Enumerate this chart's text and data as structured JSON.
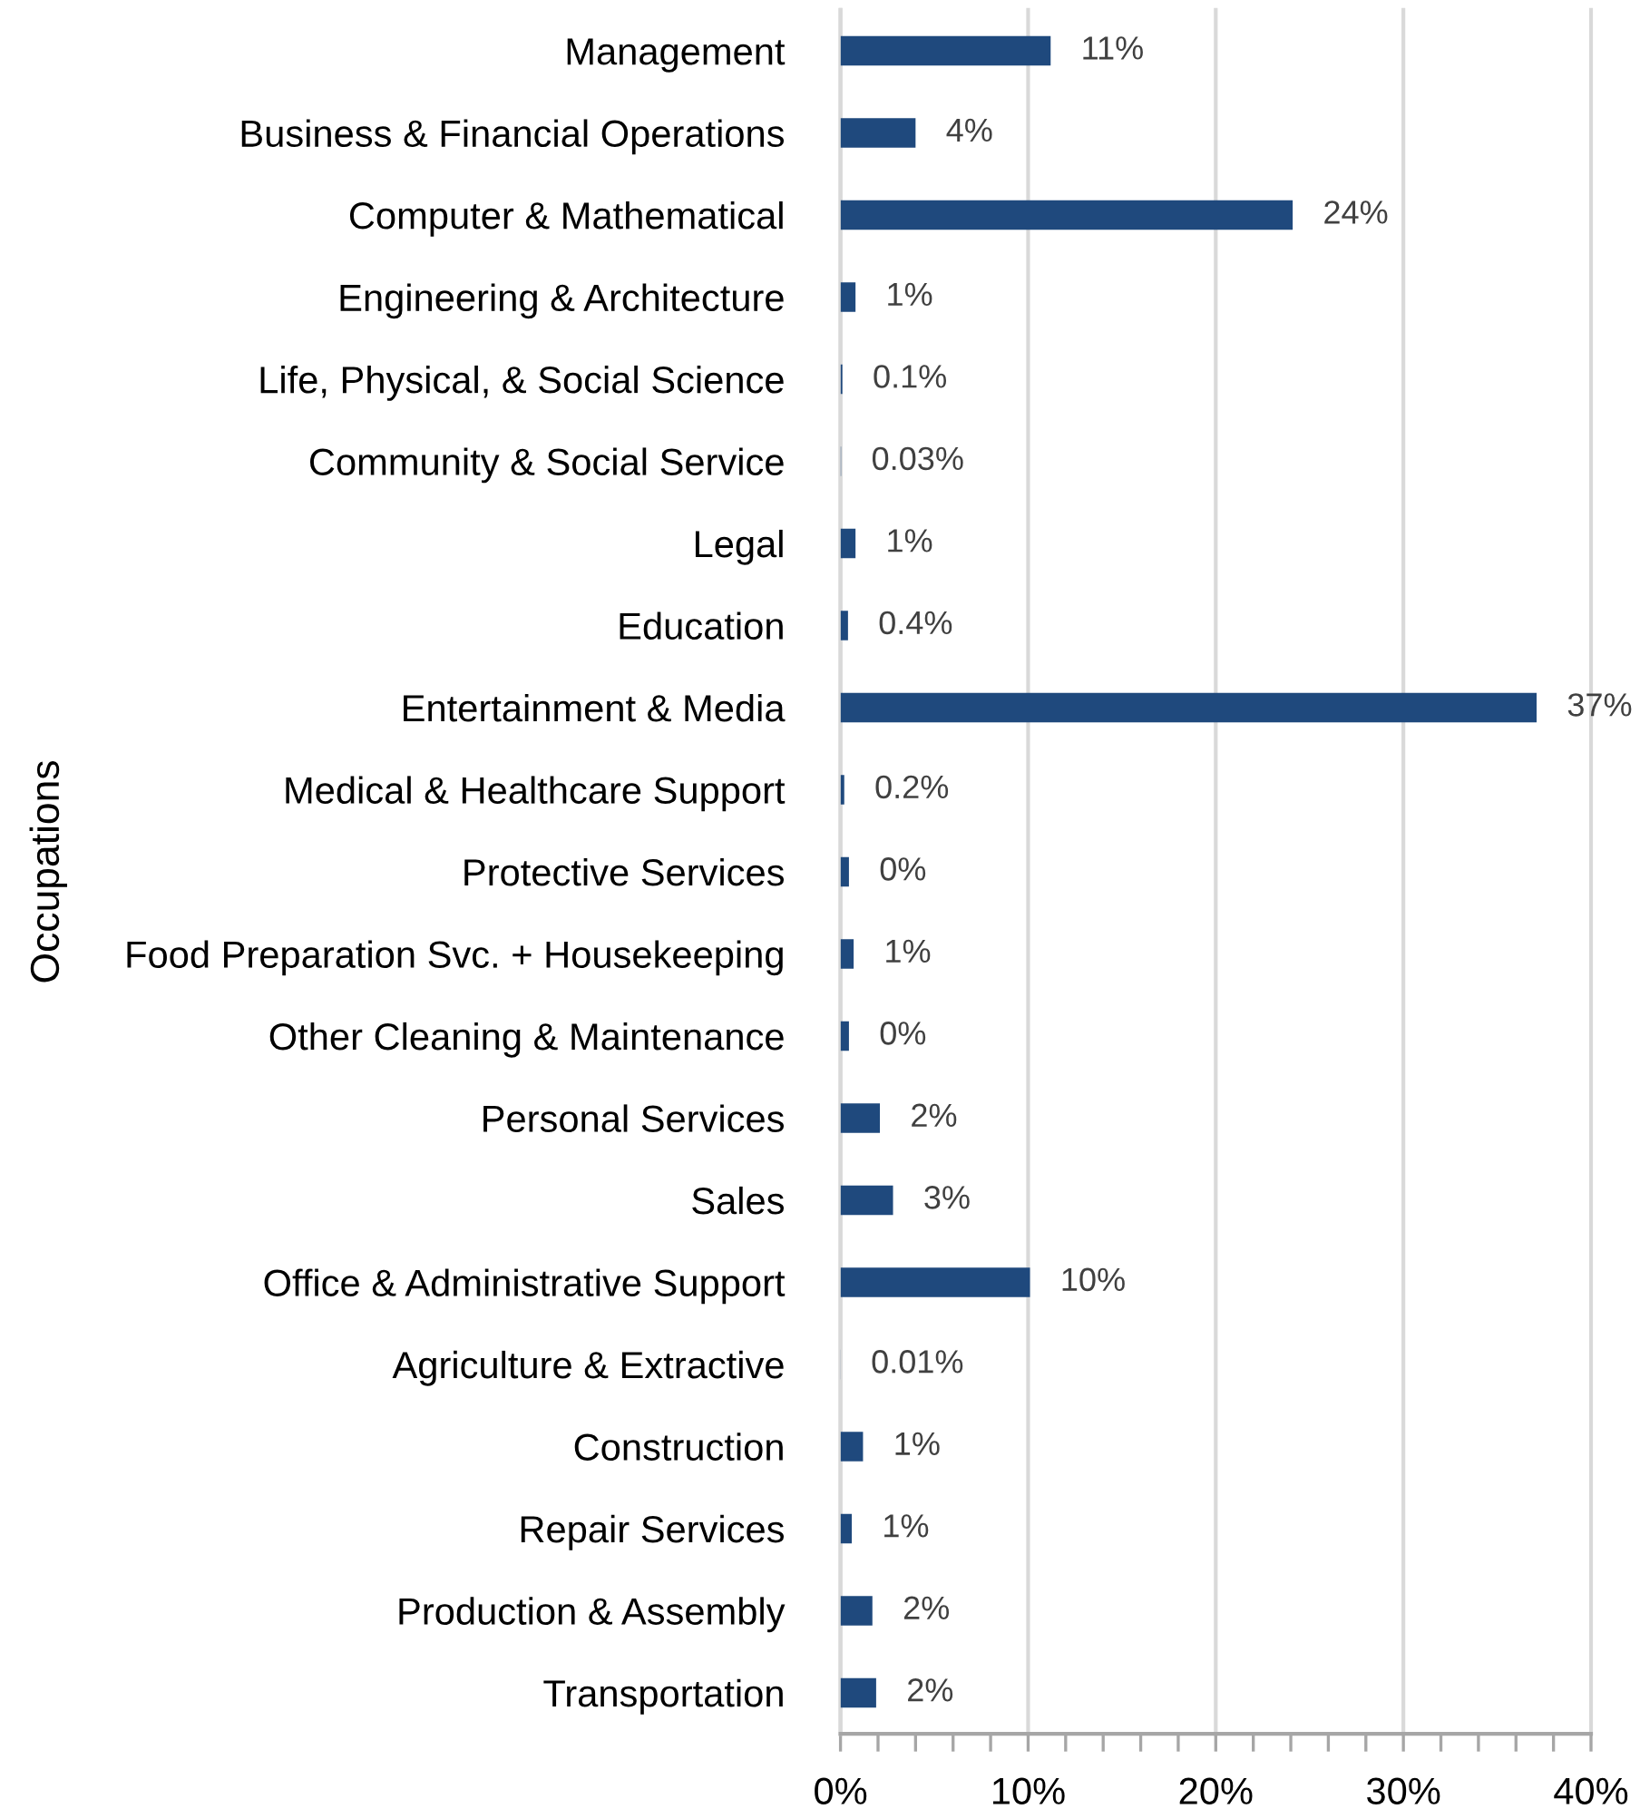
{
  "chart_data": {
    "type": "bar",
    "orientation": "horizontal",
    "ylabel": "Occupations",
    "categories": [
      "Management",
      "Business & Financial Operations",
      "Computer & Mathematical",
      "Engineering & Architecture",
      "Life, Physical, & Social Science",
      "Community & Social Service",
      "Legal",
      "Education",
      "Entertainment & Media",
      "Medical & Healthcare Support",
      "Protective Services",
      "Food Preparation Svc. + Housekeeping",
      "Other Cleaning & Maintenance",
      "Personal Services",
      "Sales",
      "Office & Administrative Support",
      "Agriculture & Extractive",
      "Construction",
      "Repair Services",
      "Production & Assembly",
      "Transportation"
    ],
    "values": [
      11.2,
      4.0,
      24.1,
      0.8,
      0.1,
      0.03,
      0.8,
      0.4,
      37.1,
      0.2,
      0.45,
      0.7,
      0.45,
      2.1,
      2.8,
      10.1,
      0.01,
      1.2,
      0.6,
      1.7,
      1.9
    ],
    "color": "#1f497d",
    "value_labels": [
      "11%",
      "4%",
      "24%",
      "1%",
      "0.1%",
      "0.03%",
      "1%",
      "0.4%",
      "37%",
      "0.2%",
      "0%",
      "1%",
      "0%",
      "2%",
      "3%",
      "10%",
      "0.01%",
      "1%",
      "1%",
      "2%",
      "2%"
    ],
    "xlim": [
      0,
      40
    ],
    "xticks": [
      {
        "value": 0,
        "label": "0%"
      },
      {
        "value": 2,
        "label": null
      },
      {
        "value": 4,
        "label": null
      },
      {
        "value": 6,
        "label": null
      },
      {
        "value": 8,
        "label": null
      },
      {
        "value": 10,
        "label": "10%"
      },
      {
        "value": 12,
        "label": null
      },
      {
        "value": 14,
        "label": null
      },
      {
        "value": 16,
        "label": null
      },
      {
        "value": 18,
        "label": null
      },
      {
        "value": 20,
        "label": "20%"
      },
      {
        "value": 22,
        "label": null
      },
      {
        "value": 24,
        "label": null
      },
      {
        "value": 26,
        "label": null
      },
      {
        "value": 28,
        "label": null
      },
      {
        "value": 30,
        "label": "30%"
      },
      {
        "value": 32,
        "label": null
      },
      {
        "value": 34,
        "label": null
      },
      {
        "value": 36,
        "label": null
      },
      {
        "value": 38,
        "label": null
      },
      {
        "value": 40,
        "label": "40%"
      }
    ],
    "grid": "x"
  }
}
